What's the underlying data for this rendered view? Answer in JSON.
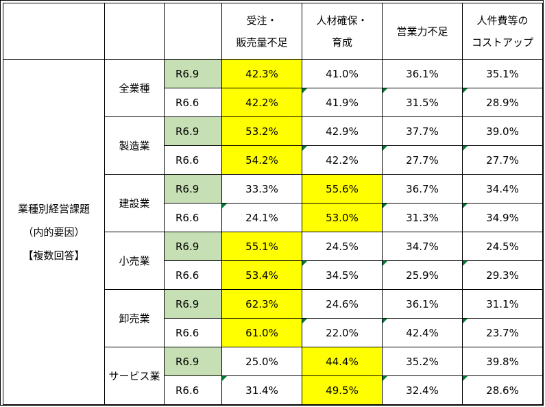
{
  "headers": [
    "受注・\n販売量不足",
    "人材確保・\n育成",
    "営業力不足",
    "人件費等の\nコストアップ"
  ],
  "header_lines": [
    [
      "受注・",
      "販売量不足"
    ],
    [
      "人材確保・",
      "育成"
    ],
    [
      "営業力不足"
    ],
    [
      "人件費等の",
      "コストアップ"
    ]
  ],
  "group_label_lines": [
    "業種別経営課題",
    "（内的要因）",
    "【複数回答】"
  ],
  "colors": {
    "highlight": "#ffff00",
    "period_fill": "#c6dfb4",
    "marker": "#007a33"
  },
  "rows": [
    {
      "industry": "全業種",
      "periods": [
        {
          "period": "R6.9",
          "values": [
            "42.3%",
            "41.0%",
            "36.1%",
            "35.1%"
          ],
          "highlight": 0
        },
        {
          "period": "R6.6",
          "values": [
            "42.2%",
            "41.9%",
            "31.5%",
            "28.9%"
          ],
          "highlight": 0
        }
      ]
    },
    {
      "industry": "製造業",
      "periods": [
        {
          "period": "R6.9",
          "values": [
            "53.2%",
            "42.9%",
            "37.7%",
            "39.0%"
          ],
          "highlight": 0
        },
        {
          "period": "R6.6",
          "values": [
            "54.2%",
            "42.2%",
            "27.7%",
            "27.7%"
          ],
          "highlight": 0
        }
      ]
    },
    {
      "industry": "建設業",
      "periods": [
        {
          "period": "R6.9",
          "values": [
            "33.3%",
            "55.6%",
            "36.7%",
            "34.4%"
          ],
          "highlight": 1
        },
        {
          "period": "R6.6",
          "values": [
            "24.1%",
            "53.0%",
            "31.3%",
            "34.9%"
          ],
          "highlight": 1
        }
      ]
    },
    {
      "industry": "小売業",
      "periods": [
        {
          "period": "R6.9",
          "values": [
            "55.1%",
            "24.5%",
            "34.7%",
            "24.5%"
          ],
          "highlight": 0
        },
        {
          "period": "R6.6",
          "values": [
            "53.4%",
            "34.5%",
            "25.9%",
            "29.3%"
          ],
          "highlight": 0
        }
      ]
    },
    {
      "industry": "卸売業",
      "periods": [
        {
          "period": "R6.9",
          "values": [
            "62.3%",
            "24.6%",
            "36.1%",
            "31.1%"
          ],
          "highlight": 0
        },
        {
          "period": "R6.6",
          "values": [
            "61.0%",
            "22.0%",
            "42.4%",
            "23.7%"
          ],
          "highlight": 0
        }
      ]
    },
    {
      "industry": "サービス業",
      "periods": [
        {
          "period": "R6.9",
          "values": [
            "25.0%",
            "44.4%",
            "35.2%",
            "39.8%"
          ],
          "highlight": 1
        },
        {
          "period": "R6.6",
          "values": [
            "31.4%",
            "49.5%",
            "32.4%",
            "28.6%"
          ],
          "highlight": 1
        }
      ]
    }
  ]
}
